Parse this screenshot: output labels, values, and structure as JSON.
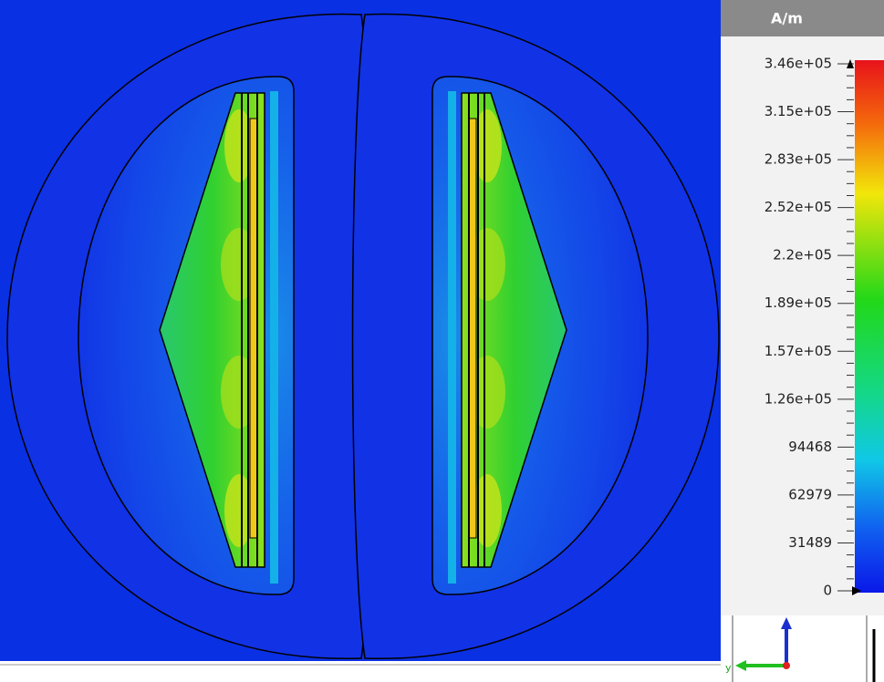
{
  "legend": {
    "unit": "A/m",
    "ticks": [
      "3.46e+05",
      "3.15e+05",
      "2.83e+05",
      "2.52e+05",
      "2.2e+05",
      "1.89e+05",
      "1.57e+05",
      "1.26e+05",
      "94468",
      "62979",
      "31489",
      "0"
    ]
  },
  "axes": {
    "y_label": "y"
  }
}
